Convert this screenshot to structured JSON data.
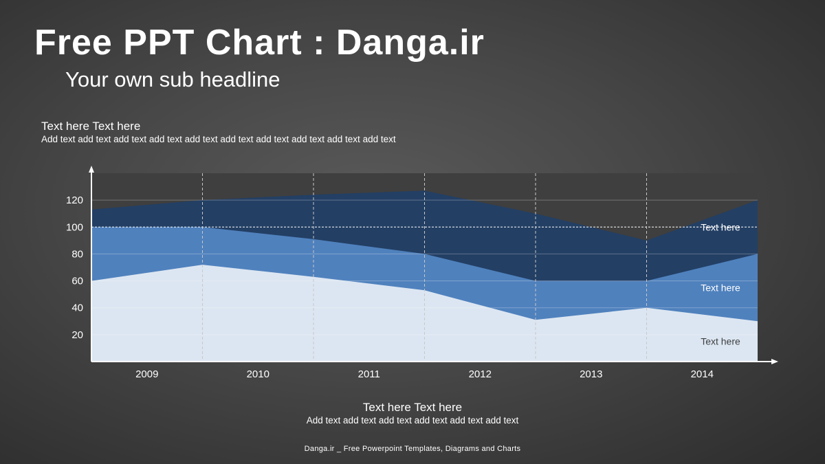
{
  "slide": {
    "title": "Free PPT Chart : Danga.ir",
    "subtitle": "Your own sub headline",
    "top_heading": "Text here Text here",
    "top_body": "Add text add text add text add text add text add text add text add text add text add text",
    "bottom_heading": "Text here Text here",
    "bottom_body": "Add text add text add text add text add text add text",
    "footer": "Danga.ir _ Free Powerpoint Templates, Diagrams and Charts"
  },
  "chart_data": {
    "type": "area",
    "categories": [
      "2009",
      "2010",
      "2011",
      "2012",
      "2013",
      "2014"
    ],
    "x": [
      2008.5,
      2009.5,
      2010.5,
      2011.5,
      2012.5,
      2013.5,
      2014.5
    ],
    "ylim": [
      0,
      140
    ],
    "yticks": [
      20,
      40,
      60,
      80,
      100,
      120
    ],
    "reference_line": 100,
    "series": [
      {
        "name": "Text here",
        "values": [
          113,
          120,
          124,
          127,
          110,
          90,
          120
        ],
        "color": "#233f64"
      },
      {
        "name": "Text here",
        "values": [
          100,
          100,
          91,
          80,
          60,
          60,
          80
        ],
        "color": "#4f81bd"
      },
      {
        "name": "Text here",
        "values": [
          60,
          72,
          63,
          53,
          31,
          40,
          30
        ],
        "color": "#dce6f2"
      }
    ],
    "label_colors": [
      "#ffffff",
      "#ffffff",
      "#404040"
    ],
    "plot_background": "#3f3f3f",
    "grid": true,
    "legend": "inline-right"
  }
}
